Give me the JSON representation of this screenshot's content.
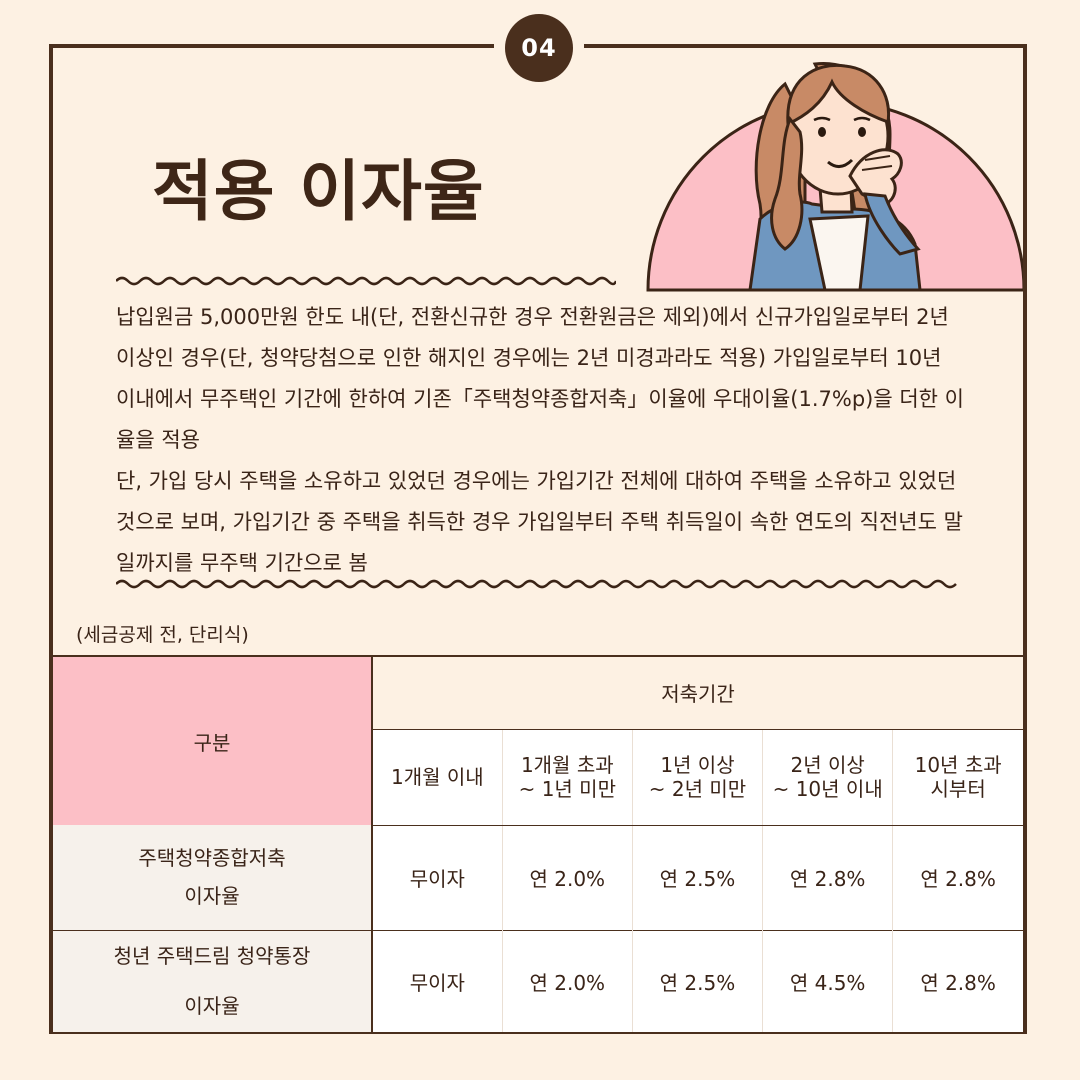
{
  "badge": "04",
  "title": "적용 이자율",
  "body": {
    "paragraph1": "납입원금 5,000만원 한도 내(단, 전환신규한 경우 전환원금은 제외)에서 신규가입일로부터 2년 이상인 경우(단, 청약당첨으로 인한 해지인 경우에는 2년 미경과라도 적용) 가입일로부터 10년 이내에서 무주택인 기간에 한하여 기존「주택청약종합저축」이율에 우대이율(1.7%p)을 더한 이율을 적용",
    "paragraph2": "단, 가입 당시 주택을 소유하고 있었던 경우에는 가입기간 전체에 대하여 주택을 소유하고 있었던 것으로 보며, 가입기간 중 주택을 취득한 경우 가입일부터 주택 취득일이 속한 연도의 직전년도 말일까지를 무주택 기간으로 봄"
  },
  "note": "(세금공제 전, 단리식)",
  "table": {
    "category_header": "구분",
    "period_header": "저축기간",
    "periods": [
      {
        "line1": "1개월 이내",
        "line2": ""
      },
      {
        "line1": "1개월 초과",
        "line2": "~ 1년 미만"
      },
      {
        "line1": "1년 이상",
        "line2": "~ 2년 미만"
      },
      {
        "line1": "2년 이상",
        "line2": "~ 10년 이내"
      },
      {
        "line1": "10년 초과",
        "line2": "시부터"
      }
    ],
    "rows": [
      {
        "label_line1": "주택청약종합저축",
        "label_line2": "이자율",
        "values": [
          "무이자",
          "연 2.0%",
          "연 2.5%",
          "연 2.8%",
          "연 2.8%"
        ]
      },
      {
        "label_line1": "청년 주택드림 청약통장",
        "label_line2": "이자율",
        "values": [
          "무이자",
          "연 2.0%",
          "연 2.5%",
          "연 4.5%",
          "연 2.8%"
        ]
      }
    ]
  },
  "colors": {
    "background": "#fdf1e3",
    "border": "#4a2f1d",
    "accent_pink": "#fcbfc6",
    "text": "#3a2418"
  },
  "icons": [
    "woman-thinking-illustration",
    "wavy-divider"
  ]
}
